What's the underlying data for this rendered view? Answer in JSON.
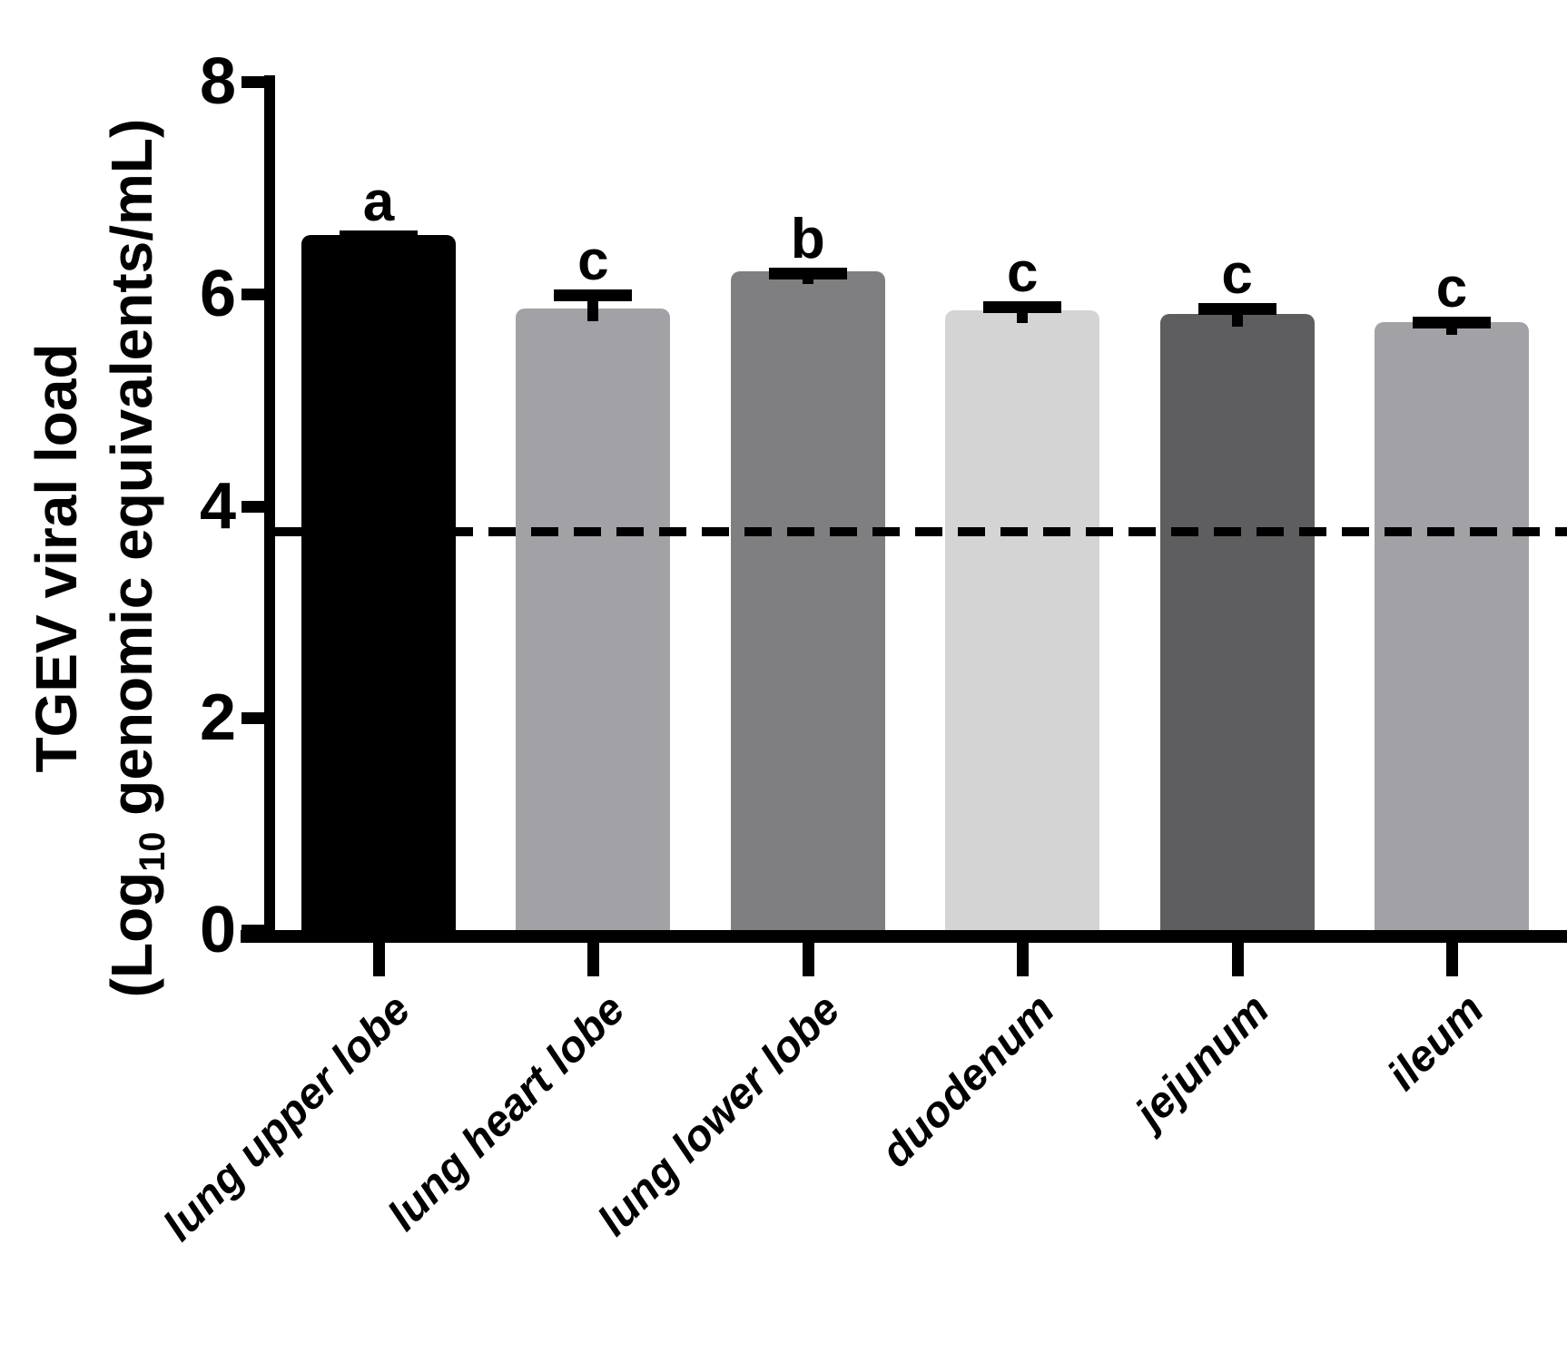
{
  "chart_data": {
    "type": "bar",
    "title": "",
    "ylabel_line1": "TGEV viral load",
    "ylabel_line2_prefix": "(Log",
    "ylabel_line2_sub": "10",
    "ylabel_line2_suffix": " genomic equivalents/mL)",
    "xlabel": "",
    "categories": [
      "lung upper lobe",
      "lung heart lobe",
      "lung lower lobe",
      "duodenum",
      "jejunum",
      "ileum"
    ],
    "values": [
      6.55,
      5.86,
      6.21,
      5.84,
      5.81,
      5.73
    ],
    "error_bar_tops": [
      6.6,
      6.04,
      6.25,
      5.93,
      5.91,
      5.78
    ],
    "significance_letters": [
      "a",
      "c",
      "b",
      "c",
      "c",
      "c"
    ],
    "bar_colors": [
      "#000000",
      "#a2a2a6",
      "#7f7f81",
      "#d4d4d4",
      "#5e5e60",
      "#a2a2a6"
    ],
    "y_ticks": [
      0,
      2,
      4,
      6,
      8
    ],
    "ylim": [
      0,
      8
    ],
    "dashed_line_value": 3.76,
    "axis_color": "#000000",
    "grid": false,
    "legend_position": "none"
  }
}
